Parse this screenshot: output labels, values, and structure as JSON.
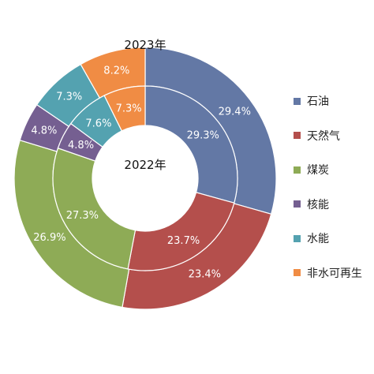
{
  "chart_data": {
    "type": "pie",
    "subtype": "nested-donut",
    "categories": [
      "石油",
      "天然气",
      "煤炭",
      "核能",
      "水能",
      "非水可再生"
    ],
    "colors": [
      "#6378a5",
      "#b44f4c",
      "#8eab56",
      "#755f91",
      "#54a2b0",
      "#f08c44"
    ],
    "series": [
      {
        "name": "2023年",
        "ring": "outer",
        "values": [
          29.4,
          23.4,
          26.9,
          4.8,
          7.3,
          8.2
        ],
        "labels": [
          "29.4%",
          "23.4%",
          "26.9%",
          "4.8%",
          "7.3%",
          "8.2%"
        ]
      },
      {
        "name": "2022年",
        "ring": "inner",
        "values": [
          29.3,
          23.7,
          27.3,
          4.8,
          7.6,
          7.3
        ],
        "labels": [
          "29.3%",
          "23.7%",
          "27.3%",
          "4.8%",
          "7.6%",
          "7.3%"
        ]
      }
    ],
    "legend_position": "right"
  }
}
